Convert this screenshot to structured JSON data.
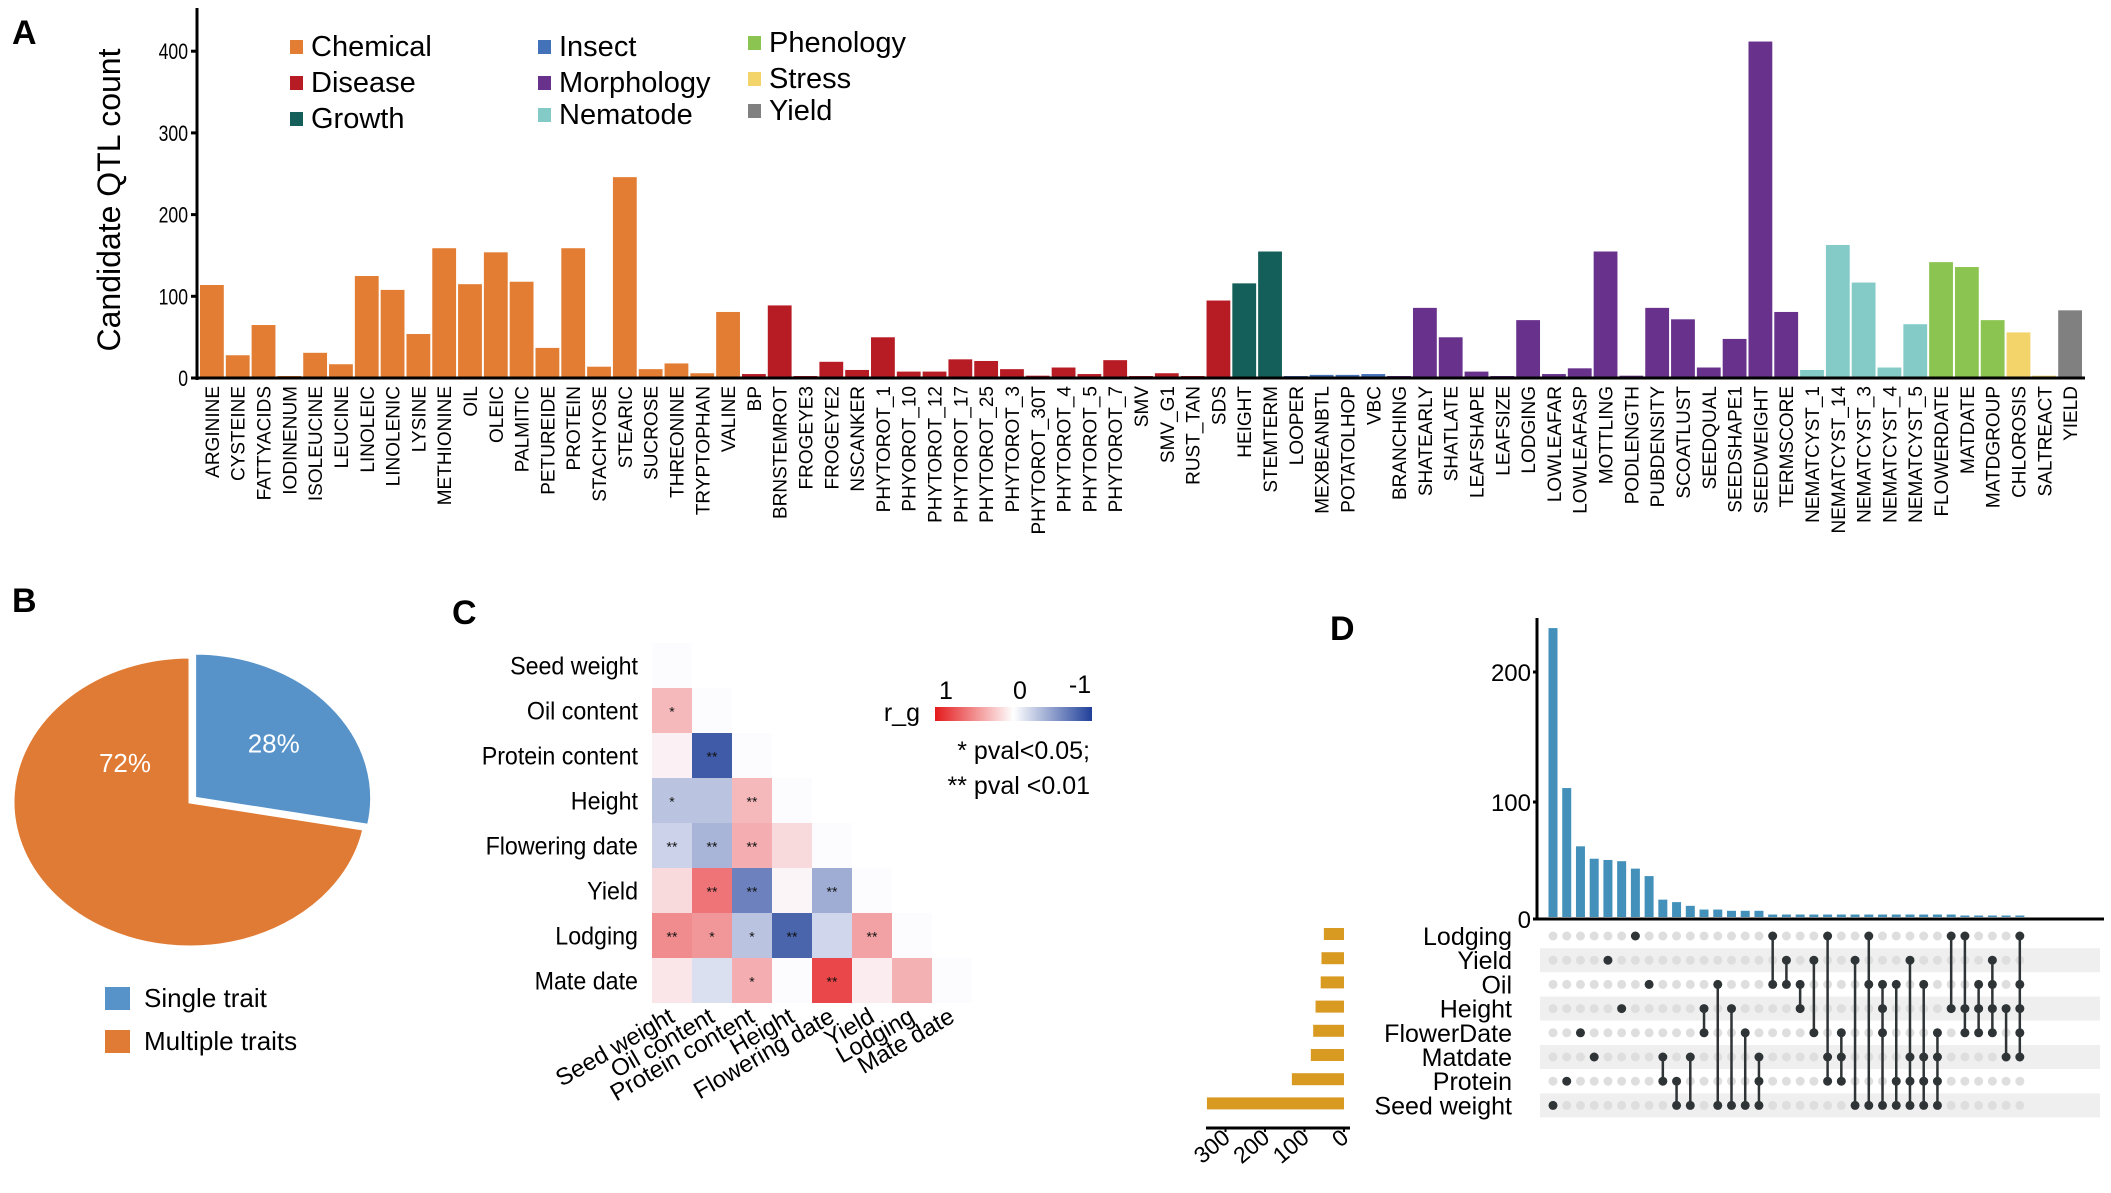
{
  "panels": {
    "A": {
      "letter": "A"
    },
    "B": {
      "letter": "B"
    },
    "C": {
      "letter": "C"
    },
    "D": {
      "letter": "D"
    }
  },
  "chart_data": [
    {
      "id": "A",
      "type": "bar",
      "title": "",
      "xlabel": "",
      "ylabel": "Candidate QTL count",
      "ylim": [
        0,
        450
      ],
      "yticks": [
        0,
        100,
        200,
        300,
        400
      ],
      "grid": false,
      "legend_position": "top-left",
      "legend": [
        {
          "name": "Chemical",
          "color": "#E27D33"
        },
        {
          "name": "Disease",
          "color": "#B71C25"
        },
        {
          "name": "Growth",
          "color": "#145F5A"
        },
        {
          "name": "Insect",
          "color": "#4472B8"
        },
        {
          "name": "Morphology",
          "color": "#68318C"
        },
        {
          "name": "Nematode",
          "color": "#84CBC8"
        },
        {
          "name": "Phenology",
          "color": "#8CC452"
        },
        {
          "name": "Stress",
          "color": "#F3D46A"
        },
        {
          "name": "Yield",
          "color": "#808080"
        }
      ],
      "categories": [
        "ARGININE",
        "CYSTEINE",
        "FATTYACIDS",
        "IODINENUM",
        "ISOLEUCINE",
        "LEUCINE",
        "LINOLEIC",
        "LINOLENIC",
        "LYSINE",
        "METHIONINE",
        "OIL",
        "OLEIC",
        "PALMITIC",
        "PETUREIDE",
        "PROTEIN",
        "STACHYOSE",
        "STEARIC",
        "SUCROSE",
        "THREONINE",
        "TRYPTOPHAN",
        "VALINE",
        "BP",
        "BRNSTEMROT",
        "FROGEYE3",
        "FROGEYE2",
        "NSCANKER",
        "PHYTOROT_1",
        "PHYOROT_10",
        "PHYTOROT_12",
        "PHYTOROT_17",
        "PHYTOROT_25",
        "PHYTOROT_3",
        "PHYTOROT_30T",
        "PHYTOROT_4",
        "PHYTOROT_5",
        "PHYTOROT_7",
        "SMV",
        "SMV_G1",
        "RUST_TAN",
        "SDS",
        "HEIGHT",
        "STEMTERM",
        "LOOPER",
        "MEXBEANBTL",
        "POTATOLHOP",
        "VBC",
        "BRANCHING",
        "SHATEARLY",
        "SHATLATE",
        "LEAFSHAPE",
        "LEAFSIZE",
        "LODGING",
        "LOWLEAFAR",
        "LOWLEAFASP",
        "MOTTLING",
        "PODLENGTH",
        "PUBDENSITY",
        "SCOATLUST",
        "SEEDQUAL",
        "SEEDSHAPE1",
        "SEEDWEIGHT",
        "TERMSCORE",
        "NEMATCYST_1",
        "NEMATCYST_14",
        "NEMATCYST_3",
        "NEMATCYST_4",
        "NEMATCYST_5",
        "FLOWERDATE",
        "MATDATE",
        "MATDGROUP",
        "CHLOROSIS",
        "SALTREACT",
        "YIELD"
      ],
      "groups": [
        "Chemical",
        "Chemical",
        "Chemical",
        "Chemical",
        "Chemical",
        "Chemical",
        "Chemical",
        "Chemical",
        "Chemical",
        "Chemical",
        "Chemical",
        "Chemical",
        "Chemical",
        "Chemical",
        "Chemical",
        "Chemical",
        "Chemical",
        "Chemical",
        "Chemical",
        "Chemical",
        "Chemical",
        "Disease",
        "Disease",
        "Disease",
        "Disease",
        "Disease",
        "Disease",
        "Disease",
        "Disease",
        "Disease",
        "Disease",
        "Disease",
        "Disease",
        "Disease",
        "Disease",
        "Disease",
        "Disease",
        "Disease",
        "Disease",
        "Disease",
        "Growth",
        "Growth",
        "Insect",
        "Insect",
        "Insect",
        "Insect",
        "Morphology",
        "Morphology",
        "Morphology",
        "Morphology",
        "Morphology",
        "Morphology",
        "Morphology",
        "Morphology",
        "Morphology",
        "Morphology",
        "Morphology",
        "Morphology",
        "Morphology",
        "Morphology",
        "Morphology",
        "Morphology",
        "Nematode",
        "Nematode",
        "Nematode",
        "Nematode",
        "Nematode",
        "Phenology",
        "Phenology",
        "Phenology",
        "Stress",
        "Stress",
        "Yield"
      ],
      "values": [
        112,
        26,
        63,
        0,
        29,
        15,
        123,
        106,
        52,
        157,
        113,
        152,
        116,
        35,
        157,
        12,
        244,
        9,
        16,
        4,
        79,
        3,
        87,
        0,
        18,
        8,
        48,
        6,
        6,
        21,
        19,
        9,
        1,
        11,
        3,
        20,
        0,
        4,
        0,
        93,
        114,
        153,
        0,
        2,
        2,
        3,
        0,
        84,
        48,
        6,
        0,
        69,
        3,
        10,
        153,
        1,
        84,
        70,
        11,
        46,
        410,
        79,
        8,
        161,
        115,
        11,
        64,
        140,
        134,
        69,
        54,
        1,
        81
      ]
    },
    {
      "id": "B",
      "type": "pie",
      "title": "",
      "legend_position": "bottom",
      "slices": [
        {
          "label": "Single trait",
          "value": 28,
          "text": "28%",
          "color": "#5793C9",
          "exploded": true
        },
        {
          "label": "Multiple traits",
          "value": 72,
          "text": "72%",
          "color": "#E07B35",
          "exploded": false
        }
      ]
    },
    {
      "id": "C",
      "type": "heatmap",
      "title": "",
      "traits": [
        "Seed weight",
        "Oil content",
        "Protein content",
        "Height",
        "Flowering date",
        "Yield",
        "Lodging",
        "Mate date"
      ],
      "colorbar": {
        "label": "r_g",
        "ticks": [
          "1",
          "0",
          "-1"
        ],
        "high_color": "#E41A1C",
        "mid_color": "#FFFFFF",
        "low_color": "#1F3F99"
      },
      "significance_note": [
        "* pval<0.05;",
        "** pval <0.01"
      ],
      "cells": [
        {
          "row": 0,
          "col": 0,
          "r": 0.0,
          "sig": ""
        },
        {
          "row": 1,
          "col": 0,
          "r": 0.3,
          "sig": "*"
        },
        {
          "row": 1,
          "col": 1,
          "r": 0.0,
          "sig": ""
        },
        {
          "row": 2,
          "col": 0,
          "r": 0.05,
          "sig": ""
        },
        {
          "row": 2,
          "col": 1,
          "r": -0.85,
          "sig": "**"
        },
        {
          "row": 2,
          "col": 2,
          "r": 0.0,
          "sig": ""
        },
        {
          "row": 3,
          "col": 0,
          "r": -0.3,
          "sig": "*"
        },
        {
          "row": 3,
          "col": 1,
          "r": -0.3,
          "sig": ""
        },
        {
          "row": 3,
          "col": 2,
          "r": 0.3,
          "sig": "**"
        },
        {
          "row": 3,
          "col": 3,
          "r": 0.0,
          "sig": ""
        },
        {
          "row": 4,
          "col": 0,
          "r": -0.22,
          "sig": "**"
        },
        {
          "row": 4,
          "col": 1,
          "r": -0.38,
          "sig": "**"
        },
        {
          "row": 4,
          "col": 2,
          "r": 0.35,
          "sig": "**"
        },
        {
          "row": 4,
          "col": 3,
          "r": 0.15,
          "sig": ""
        },
        {
          "row": 4,
          "col": 4,
          "r": 0.0,
          "sig": ""
        },
        {
          "row": 5,
          "col": 0,
          "r": 0.15,
          "sig": ""
        },
        {
          "row": 5,
          "col": 1,
          "r": 0.6,
          "sig": "**"
        },
        {
          "row": 5,
          "col": 2,
          "r": -0.65,
          "sig": "**"
        },
        {
          "row": 5,
          "col": 3,
          "r": 0.03,
          "sig": ""
        },
        {
          "row": 5,
          "col": 4,
          "r": -0.42,
          "sig": "**"
        },
        {
          "row": 5,
          "col": 5,
          "r": 0.0,
          "sig": ""
        },
        {
          "row": 6,
          "col": 0,
          "r": 0.5,
          "sig": "**"
        },
        {
          "row": 6,
          "col": 1,
          "r": 0.45,
          "sig": "*"
        },
        {
          "row": 6,
          "col": 2,
          "r": -0.3,
          "sig": "*"
        },
        {
          "row": 6,
          "col": 3,
          "r": -0.8,
          "sig": "**"
        },
        {
          "row": 6,
          "col": 4,
          "r": -0.2,
          "sig": ""
        },
        {
          "row": 6,
          "col": 5,
          "r": 0.4,
          "sig": "**"
        },
        {
          "row": 6,
          "col": 6,
          "r": 0.0,
          "sig": ""
        },
        {
          "row": 7,
          "col": 0,
          "r": 0.1,
          "sig": ""
        },
        {
          "row": 7,
          "col": 1,
          "r": -0.15,
          "sig": ""
        },
        {
          "row": 7,
          "col": 2,
          "r": 0.35,
          "sig": "*"
        },
        {
          "row": 7,
          "col": 3,
          "r": 0.0,
          "sig": ""
        },
        {
          "row": 7,
          "col": 4,
          "r": 0.8,
          "sig": "**"
        },
        {
          "row": 7,
          "col": 5,
          "r": 0.07,
          "sig": ""
        },
        {
          "row": 7,
          "col": 6,
          "r": 0.33,
          "sig": ""
        },
        {
          "row": 7,
          "col": 7,
          "r": 0.0,
          "sig": ""
        }
      ]
    },
    {
      "id": "D",
      "type": "bar",
      "subtype": "upset",
      "title": "",
      "intersection_ylim": [
        0,
        240
      ],
      "intersection_yticks": [
        0,
        100,
        200
      ],
      "intersection_color": "#4391BB",
      "set_size_color": "#D99A22",
      "set_size_xlim": [
        0,
        350
      ],
      "set_size_xticks": [
        300,
        200,
        100,
        0
      ],
      "sets": [
        "Lodging",
        "Yield",
        "Oil",
        "Height",
        "FlowerDate",
        "Matdate",
        "Protein",
        "Seed weight"
      ],
      "set_sizes": [
        51,
        57,
        59,
        72,
        78,
        84,
        132,
        347
      ],
      "intersections": [
        {
          "sets": [
            7
          ],
          "count": 233
        },
        {
          "sets": [
            6
          ],
          "count": 104
        },
        {
          "sets": [
            4
          ],
          "count": 57
        },
        {
          "sets": [
            5
          ],
          "count": 47
        },
        {
          "sets": [
            1
          ],
          "count": 46
        },
        {
          "sets": [
            3
          ],
          "count": 45
        },
        {
          "sets": [
            0
          ],
          "count": 39
        },
        {
          "sets": [
            2
          ],
          "count": 33
        },
        {
          "sets": [
            5,
            6
          ],
          "count": 14
        },
        {
          "sets": [
            6,
            7
          ],
          "count": 12
        },
        {
          "sets": [
            5,
            7
          ],
          "count": 9
        },
        {
          "sets": [
            3,
            4
          ],
          "count": 6
        },
        {
          "sets": [
            2,
            7
          ],
          "count": 6
        },
        {
          "sets": [
            3,
            7
          ],
          "count": 5
        },
        {
          "sets": [
            4,
            7
          ],
          "count": 5
        },
        {
          "sets": [
            5,
            6,
            7
          ],
          "count": 5
        },
        {
          "sets": [
            0,
            2
          ],
          "count": 2
        },
        {
          "sets": [
            1,
            2
          ],
          "count": 2
        },
        {
          "sets": [
            2,
            3
          ],
          "count": 2
        },
        {
          "sets": [
            1,
            4
          ],
          "count": 2
        },
        {
          "sets": [
            0,
            5,
            6
          ],
          "count": 2
        },
        {
          "sets": [
            4,
            5,
            6
          ],
          "count": 2
        },
        {
          "sets": [
            1,
            7
          ],
          "count": 2
        },
        {
          "sets": [
            0,
            2,
            7
          ],
          "count": 2
        },
        {
          "sets": [
            2,
            3,
            4,
            7
          ],
          "count": 2
        },
        {
          "sets": [
            2,
            6,
            7
          ],
          "count": 2
        },
        {
          "sets": [
            1,
            5,
            6,
            7
          ],
          "count": 2
        },
        {
          "sets": [
            2,
            5,
            6,
            7
          ],
          "count": 2
        },
        {
          "sets": [
            4,
            5,
            6,
            7
          ],
          "count": 2
        },
        {
          "sets": [
            0,
            3
          ],
          "count": 2
        },
        {
          "sets": [
            0,
            3,
            4
          ],
          "count": 1
        },
        {
          "sets": [
            2,
            3,
            4
          ],
          "count": 1
        },
        {
          "sets": [
            1,
            2,
            3,
            4
          ],
          "count": 1
        },
        {
          "sets": [
            3,
            5
          ],
          "count": 1
        },
        {
          "sets": [
            0,
            2,
            3,
            4,
            5
          ],
          "count": 1
        }
      ]
    }
  ]
}
